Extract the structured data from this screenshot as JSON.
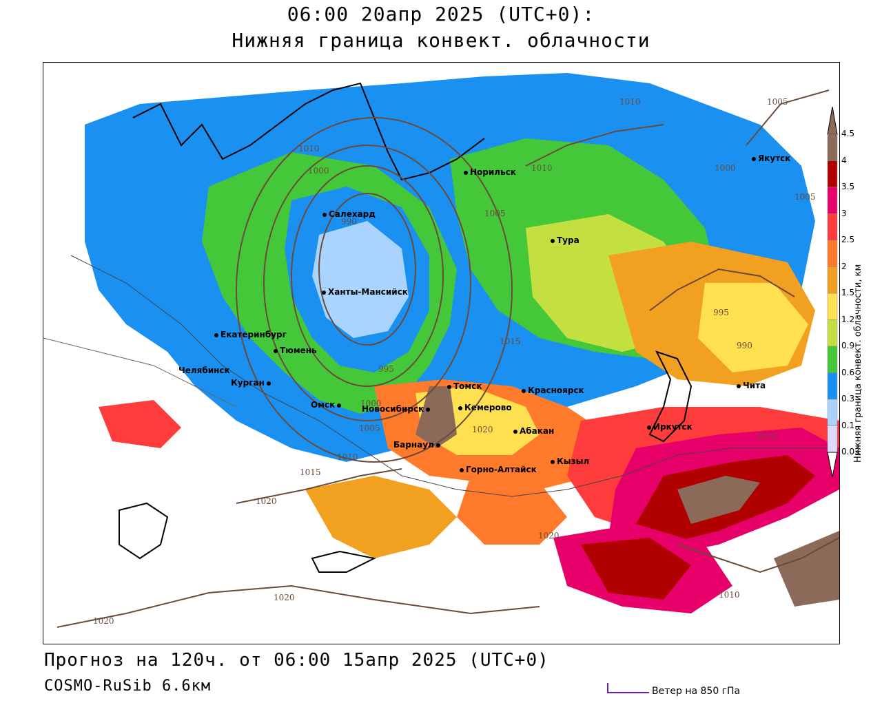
{
  "header": {
    "title_line1": "06:00 20апр 2025 (UTC+0):",
    "title_line2": "Нижняя граница конвект. облачности"
  },
  "footer": {
    "forecast_line": "Прогноз на 120ч. от 06:00 15апр 2025 (UTC+0)",
    "model_line": "COSMO-RuSib 6.6км",
    "wind_legend_label": "Ветер на 850 гПа"
  },
  "legend": {
    "title": "Нижняя граница конвект. облачности, км",
    "ticks": [
      "4.5",
      "4",
      "3.5",
      "3",
      "2.5",
      "2",
      "1.5",
      "1.2",
      "0.9",
      "0.6",
      "0.3",
      "0.1",
      "0.03"
    ],
    "colors": [
      "#8c6a5a",
      "#b00000",
      "#e8006a",
      "#ff3c3c",
      "#ff7a2a",
      "#f2a020",
      "#ffe050",
      "#c4e040",
      "#44c83a",
      "#1a90f0",
      "#a8d4ff",
      "#dcdcff"
    ]
  },
  "cities": [
    {
      "name": "Норильск"
    },
    {
      "name": "Якутск"
    },
    {
      "name": "Салехард"
    },
    {
      "name": "Тура"
    },
    {
      "name": "Ханты-Мансийск"
    },
    {
      "name": "Екатеринбург"
    },
    {
      "name": "Тюмень"
    },
    {
      "name": "Челябинск"
    },
    {
      "name": "Курган"
    },
    {
      "name": "Омск"
    },
    {
      "name": "Новосибирск"
    },
    {
      "name": "Томск"
    },
    {
      "name": "Кемерово"
    },
    {
      "name": "Красноярск"
    },
    {
      "name": "Барнаул"
    },
    {
      "name": "Абакан"
    },
    {
      "name": "Иркутск"
    },
    {
      "name": "Кызыл"
    },
    {
      "name": "Горно-Алтайск"
    },
    {
      "name": "Чита"
    }
  ],
  "isobar_labels": [
    "1005",
    "1010",
    "1010",
    "1000",
    "1005",
    "1005",
    "990",
    "1000",
    "1010",
    "1015",
    "995",
    "990",
    "995",
    "1000",
    "1005",
    "1010",
    "1015",
    "1020",
    "1020",
    "1010",
    "1020",
    "1020",
    "1020",
    "1010"
  ]
}
